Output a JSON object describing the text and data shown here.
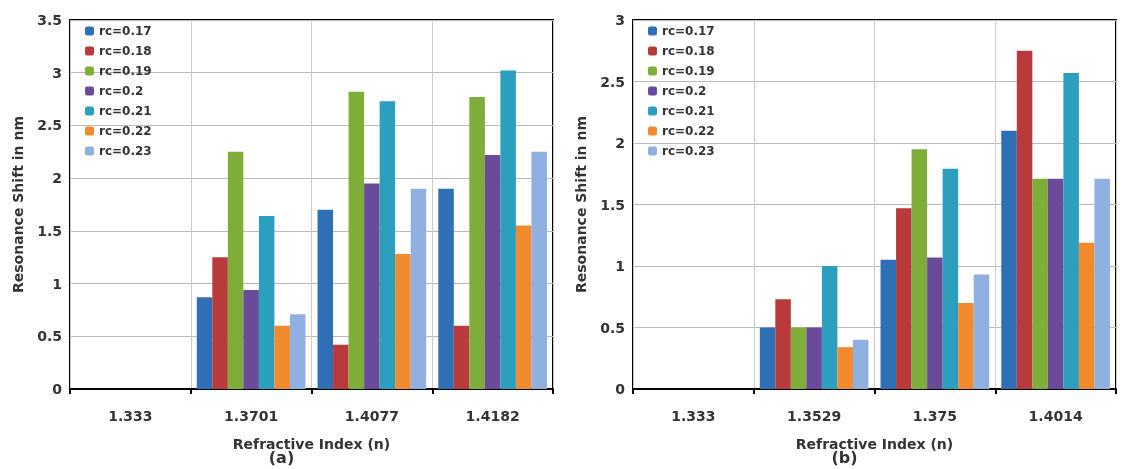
{
  "chart_data": [
    {
      "type": "bar",
      "xlabel": "Refractive Index (n)",
      "ylabel": "Resonance Shift in nm",
      "annotations": [
        "(a)"
      ],
      "categories": [
        "1.333",
        "1.3701",
        "1.4077",
        "1.4182"
      ],
      "ylim": [
        0,
        3.5
      ],
      "yticks": [
        0,
        0.5,
        1,
        1.5,
        2,
        2.5,
        3,
        3.5
      ],
      "grid": true,
      "legend": "top left",
      "series": [
        {
          "name": "rc=0.17",
          "color": "#2e6fb5",
          "values": [
            0,
            0.87,
            1.7,
            1.9
          ]
        },
        {
          "name": "rc=0.18",
          "color": "#b83a3a",
          "values": [
            0,
            1.25,
            0.42,
            0.6
          ]
        },
        {
          "name": "rc=0.19",
          "color": "#7fad3a",
          "values": [
            0,
            2.25,
            2.82,
            2.77
          ]
        },
        {
          "name": "rc=0.2",
          "color": "#6a4a9a",
          "values": [
            0,
            0.94,
            1.95,
            2.22
          ]
        },
        {
          "name": "rc=0.21",
          "color": "#2c9fbf",
          "values": [
            0,
            1.64,
            2.73,
            3.02
          ]
        },
        {
          "name": "rc=0.22",
          "color": "#f08a2c",
          "values": [
            0,
            0.6,
            1.28,
            1.55
          ]
        },
        {
          "name": "rc=0.23",
          "color": "#8fb0e0",
          "values": [
            0,
            0.71,
            1.9,
            2.25
          ]
        }
      ]
    },
    {
      "type": "bar",
      "xlabel": "Refractive Index (n)",
      "ylabel": "Resonance Shift in nm",
      "annotations": [
        "(b)"
      ],
      "categories": [
        "1.333",
        "1.3529",
        "1.375",
        "1.4014"
      ],
      "ylim": [
        0,
        3
      ],
      "yticks": [
        0,
        0.5,
        1,
        1.5,
        2,
        2.5,
        3
      ],
      "grid": true,
      "legend": "top left",
      "series": [
        {
          "name": "rc=0.17",
          "color": "#2e6fb5",
          "values": [
            0,
            0.5,
            1.05,
            2.1
          ]
        },
        {
          "name": "rc=0.18",
          "color": "#b83a3a",
          "values": [
            0,
            0.73,
            1.47,
            2.75
          ]
        },
        {
          "name": "rc=0.19",
          "color": "#7fad3a",
          "values": [
            0,
            0.5,
            1.95,
            1.71
          ]
        },
        {
          "name": "rc=0.2",
          "color": "#6a4a9a",
          "values": [
            0,
            0.5,
            1.07,
            1.71
          ]
        },
        {
          "name": "rc=0.21",
          "color": "#2c9fbf",
          "values": [
            0,
            1.0,
            1.79,
            2.57
          ]
        },
        {
          "name": "rc=0.22",
          "color": "#f08a2c",
          "values": [
            0,
            0.34,
            0.7,
            1.19
          ]
        },
        {
          "name": "rc=0.23",
          "color": "#8fb0e0",
          "values": [
            0,
            0.4,
            0.93,
            1.71
          ]
        }
      ]
    }
  ]
}
